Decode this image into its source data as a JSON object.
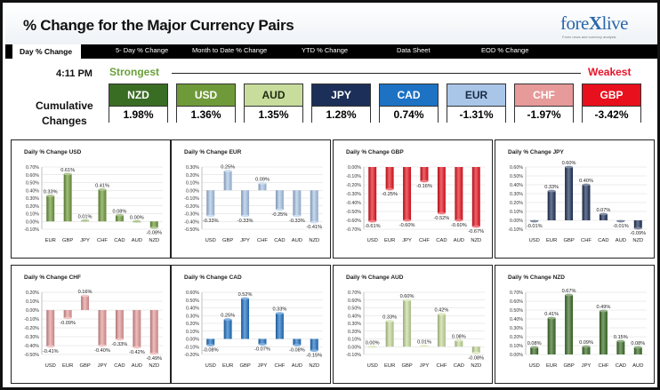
{
  "header": {
    "title": "% Change for the Major Currency Pairs",
    "logo_main": "fore",
    "logo_x": "X",
    "logo_rest": "live",
    "logo_tagline": "Forex news and currency analysis"
  },
  "nav": {
    "tabs": [
      {
        "label": "Day % Change",
        "active": true
      },
      {
        "label": "5- Day % Change",
        "active": false
      },
      {
        "label": "Month to Date % Change",
        "active": false
      },
      {
        "label": "YTD % Change",
        "active": false
      },
      {
        "label": "Data Sheet",
        "active": false
      },
      {
        "label": "EOD % Change",
        "active": false
      }
    ]
  },
  "summary": {
    "time": "4:11 PM",
    "strongest_label": "Strongest",
    "weakest_label": "Weakest",
    "cumulative_line1": "Cumulative",
    "cumulative_line2": "Changes",
    "currencies": [
      {
        "name": "NZD",
        "value": "1.98%",
        "color": "#3a6d24",
        "text_color": "#ffffff"
      },
      {
        "name": "USD",
        "value": "1.36%",
        "color": "#6f9a3a",
        "text_color": "#ffffff"
      },
      {
        "name": "AUD",
        "value": "1.35%",
        "color": "#c8dc9c",
        "text_color": "#1a2b10"
      },
      {
        "name": "JPY",
        "value": "1.28%",
        "color": "#1c2f58",
        "text_color": "#ffffff"
      },
      {
        "name": "CAD",
        "value": "0.74%",
        "color": "#1d72c4",
        "text_color": "#ffffff"
      },
      {
        "name": "EUR",
        "value": "-1.31%",
        "color": "#a9c6e8",
        "text_color": "#1a2b44"
      },
      {
        "name": "CHF",
        "value": "-1.97%",
        "color": "#e79a9a",
        "text_color": "#ffffff"
      },
      {
        "name": "GBP",
        "value": "-3.42%",
        "color": "#e8101c",
        "text_color": "#ffffff"
      }
    ]
  },
  "chart_data": [
    {
      "type": "bar",
      "title": "Daily % Change USD",
      "color": "#6f9a3a",
      "categories": [
        "EUR",
        "GBP",
        "JPY",
        "CHF",
        "CAD",
        "AUD",
        "NZD"
      ],
      "values": [
        0.33,
        0.61,
        0.01,
        0.41,
        0.08,
        0.0,
        -0.08
      ],
      "labels": [
        "0.33%",
        "0.61%",
        "0.01%",
        "0.41%",
        "0.08%",
        "0.00%",
        "-0.08%"
      ],
      "yticks": [
        "0.70%",
        "0.60%",
        "0.50%",
        "0.40%",
        "0.30%",
        "0.20%",
        "0.10%",
        "0.00%",
        "-0.10%"
      ],
      "ylim": [
        -0.1,
        0.7
      ]
    },
    {
      "type": "bar",
      "title": "Daily % Change EUR",
      "color": "#a9c6e8",
      "categories": [
        "USD",
        "GBP",
        "JPY",
        "CHF",
        "CAD",
        "AUD",
        "NZD"
      ],
      "values": [
        -0.33,
        0.25,
        -0.33,
        0.09,
        -0.25,
        -0.33,
        -0.41
      ],
      "labels": [
        "-0.33%",
        "0.25%",
        "-0.33%",
        "0.09%",
        "-0.25%",
        "-0.33%",
        "-0.41%"
      ],
      "yticks": [
        "0.30%",
        "0.20%",
        "0.10%",
        "0.00%",
        "-0.10%",
        "-0.20%",
        "-0.30%",
        "-0.40%",
        "-0.50%"
      ],
      "ylim": [
        -0.5,
        0.3
      ]
    },
    {
      "type": "bar",
      "title": "Daily % Change GBP",
      "color": "#e8101c",
      "categories": [
        "USD",
        "EUR",
        "JPY",
        "CHF",
        "CAD",
        "AUD",
        "NZD"
      ],
      "values": [
        -0.61,
        -0.25,
        -0.6,
        -0.16,
        -0.52,
        -0.6,
        -0.67
      ],
      "labels": [
        "-0.61%",
        "-0.25%",
        "-0.60%",
        "-0.16%",
        "-0.52%",
        "-0.60%",
        "-0.67%"
      ],
      "yticks": [
        "0.00%",
        "-0.10%",
        "-0.20%",
        "-0.30%",
        "-0.40%",
        "-0.50%",
        "-0.60%",
        "-0.70%"
      ],
      "ylim": [
        -0.7,
        0.0
      ]
    },
    {
      "type": "bar",
      "title": "Daily % Change JPY",
      "color": "#1c2f58",
      "categories": [
        "USD",
        "EUR",
        "GBP",
        "CHF",
        "CAD",
        "AUD",
        "NZD"
      ],
      "values": [
        -0.01,
        0.33,
        0.6,
        0.4,
        0.07,
        -0.01,
        -0.09
      ],
      "labels": [
        "-0.01%",
        "0.33%",
        "0.60%",
        "0.40%",
        "0.07%",
        "-0.01%",
        "-0.09%"
      ],
      "yticks": [
        "0.60%",
        "0.50%",
        "0.40%",
        "0.30%",
        "0.20%",
        "0.10%",
        "0.00%",
        "-0.10%"
      ],
      "ylim": [
        -0.1,
        0.6
      ]
    },
    {
      "type": "bar",
      "title": "Daily % Change CHF",
      "color": "#e79a9a",
      "categories": [
        "USD",
        "EUR",
        "GBP",
        "JPY",
        "CAD",
        "AUD",
        "NZD"
      ],
      "values": [
        -0.41,
        -0.09,
        0.16,
        -0.4,
        -0.33,
        -0.42,
        -0.49
      ],
      "labels": [
        "-0.41%",
        "-0.09%",
        "0.16%",
        "-0.40%",
        "-0.33%",
        "-0.42%",
        "-0.49%"
      ],
      "yticks": [
        "0.20%",
        "0.10%",
        "0.00%",
        "-0.10%",
        "-0.20%",
        "-0.30%",
        "-0.40%",
        "-0.50%"
      ],
      "ylim": [
        -0.5,
        0.2
      ]
    },
    {
      "type": "bar",
      "title": "Daily % Change CAD",
      "color": "#1d72c4",
      "categories": [
        "USD",
        "EUR",
        "GBP",
        "JPY",
        "CHF",
        "AUD",
        "NZD"
      ],
      "values": [
        -0.08,
        0.25,
        0.52,
        -0.07,
        0.33,
        -0.08,
        -0.15
      ],
      "labels": [
        "-0.08%",
        "0.25%",
        "0.52%",
        "-0.07%",
        "0.33%",
        "-0.08%",
        "-0.15%"
      ],
      "yticks": [
        "0.60%",
        "0.50%",
        "0.40%",
        "0.30%",
        "0.20%",
        "0.10%",
        "0.00%",
        "-0.10%",
        "-0.20%"
      ],
      "ylim": [
        -0.2,
        0.6
      ]
    },
    {
      "type": "bar",
      "title": "Daily % Change AUD",
      "color": "#c8dc9c",
      "categories": [
        "USD",
        "EUR",
        "GBP",
        "JPY",
        "CHF",
        "CAD",
        "NZD"
      ],
      "values": [
        0.0,
        0.33,
        0.6,
        0.01,
        0.42,
        0.08,
        -0.08
      ],
      "labels": [
        "0.00%",
        "0.33%",
        "0.60%",
        "0.01%",
        "0.42%",
        "0.08%",
        "-0.08%"
      ],
      "yticks": [
        "0.70%",
        "0.60%",
        "0.50%",
        "0.40%",
        "0.30%",
        "0.20%",
        "0.10%",
        "0.00%",
        "-0.10%"
      ],
      "ylim": [
        -0.1,
        0.7
      ]
    },
    {
      "type": "bar",
      "title": "Daily % Change NZD",
      "color": "#3a6d24",
      "categories": [
        "USD",
        "EUR",
        "GBP",
        "JPY",
        "CHF",
        "CAD",
        "AUD"
      ],
      "values": [
        0.08,
        0.41,
        0.67,
        0.09,
        0.49,
        0.15,
        0.08
      ],
      "labels": [
        "0.08%",
        "0.41%",
        "0.67%",
        "0.09%",
        "0.49%",
        "0.15%",
        "0.08%"
      ],
      "yticks": [
        "0.70%",
        "0.60%",
        "0.50%",
        "0.40%",
        "0.30%",
        "0.20%",
        "0.10%",
        "0.00%"
      ],
      "ylim": [
        0.0,
        0.7
      ]
    }
  ]
}
